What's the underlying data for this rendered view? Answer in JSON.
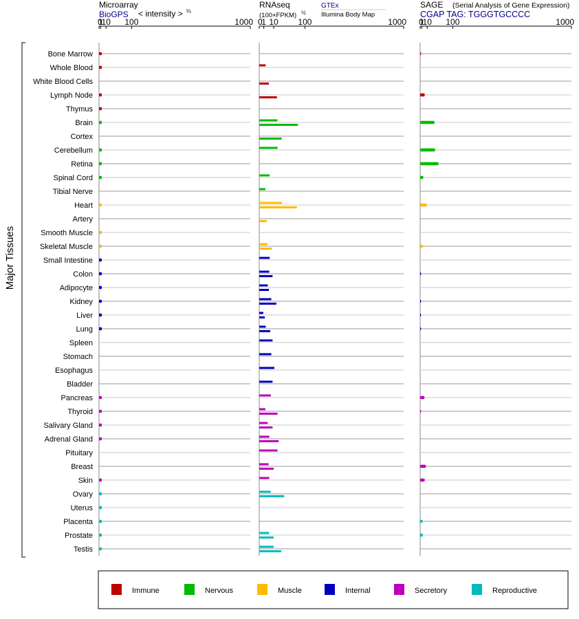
{
  "colors": {
    "immune": "#bb0000",
    "nervous": "#00bb00",
    "muscle": "#ffbb00",
    "internal": "#0000bb",
    "secretory": "#bb00bb",
    "reproductive": "#00bbbb",
    "accent_blue": "#000088"
  },
  "headers": {
    "microarray": {
      "title": "Microarray",
      "source": "BioGPS",
      "unit": "< intensity >",
      "unit_exp": "⅔"
    },
    "rnaseq": {
      "title": "RNAseq",
      "unit": "(100×FPKM)",
      "unit_exp": "½",
      "gtex": "GTEx",
      "ibm": "Illumina Body Map"
    },
    "sage": {
      "title": "SAGE",
      "subtitle": "(Serial Analysis of Gene Expression)",
      "tag": "CGAP TAG: TGGGTGCCCC"
    }
  },
  "y_group_label": "Major Tissues",
  "legend": [
    {
      "name": "Immune",
      "color": "#bb0000"
    },
    {
      "name": "Nervous",
      "color": "#00bb00"
    },
    {
      "name": "Muscle",
      "color": "#ffbb00"
    },
    {
      "name": "Internal",
      "color": "#0000bb"
    },
    {
      "name": "Secretory",
      "color": "#bb00bb"
    },
    {
      "name": "Reproductive",
      "color": "#00bbbb"
    }
  ],
  "chart_data": [
    {
      "type": "bar",
      "panel": "Microarray",
      "x_scale": "power 2/3",
      "xlim": [
        0,
        1000
      ],
      "ticks": [
        "0",
        "1",
        "10",
        "100",
        "1000"
      ],
      "tick_values": [
        0,
        1,
        10,
        100,
        1000
      ],
      "grid": true,
      "categories": [
        "Bone Marrow",
        "Whole Blood",
        "White Blood Cells",
        "Lymph Node",
        "Thymus",
        "Brain",
        "Cortex",
        "Cerebellum",
        "Retina",
        "Spinal Cord",
        "Tibial Nerve",
        "Heart",
        "Artery",
        "Smooth Muscle",
        "Skeletal Muscle",
        "Small Intestine",
        "Colon",
        "Adipocyte",
        "Kidney",
        "Liver",
        "Lung",
        "Spleen",
        "Stomach",
        "Esophagus",
        "Bladder",
        "Pancreas",
        "Thyroid",
        "Salivary Gland",
        "Adrenal Gland",
        "Pituitary",
        "Breast",
        "Skin",
        "Ovary",
        "Uterus",
        "Placenta",
        "Prostate",
        "Testis"
      ],
      "groups": [
        "immune",
        "immune",
        "immune",
        "immune",
        "immune",
        "nervous",
        "nervous",
        "nervous",
        "nervous",
        "nervous",
        "nervous",
        "muscle",
        "muscle",
        "muscle",
        "muscle",
        "internal",
        "internal",
        "internal",
        "internal",
        "internal",
        "internal",
        "internal",
        "internal",
        "internal",
        "internal",
        "secretory",
        "secretory",
        "secretory",
        "secretory",
        "secretory",
        "secretory",
        "secretory",
        "reproductive",
        "reproductive",
        "reproductive",
        "reproductive",
        "reproductive"
      ],
      "values": [
        2.5,
        2.5,
        null,
        2.5,
        2.5,
        2.5,
        null,
        2.5,
        2.5,
        2.5,
        null,
        2.3,
        null,
        2.5,
        2.5,
        2.5,
        2.5,
        2.5,
        2.5,
        2.5,
        2.5,
        null,
        null,
        null,
        null,
        2.5,
        2.5,
        2.5,
        2.5,
        null,
        null,
        2.5,
        2.5,
        2.5,
        2.5,
        2.5,
        2.5
      ]
    },
    {
      "type": "bar",
      "panel": "RNAseq",
      "x_scale": "power 1/2",
      "xlim": [
        0,
        1000
      ],
      "ticks": [
        "0",
        "1",
        "10",
        "100",
        "1000"
      ],
      "tick_values": [
        0,
        1,
        10,
        100,
        1000
      ],
      "grid": true,
      "series": [
        {
          "name": "GTEx",
          "values": [
            null,
            2.0,
            null,
            null,
            null,
            16,
            null,
            16,
            null,
            5.2,
            1.8,
            25,
            null,
            null,
            3.2,
            5.2,
            4.8,
            3.5,
            7,
            0.8,
            2.0,
            8.5,
            7,
            11,
            8.5,
            6.5,
            1.8,
            3.4,
            4.8,
            16,
            4.2,
            4.8,
            6.4,
            null,
            null,
            4.6,
            10
          ]
        },
        {
          "name": "Illumina Body Map",
          "values": [
            null,
            null,
            4.5,
            15,
            null,
            72,
            24,
            null,
            null,
            null,
            null,
            68,
            2.8,
            null,
            7.6,
            null,
            8.5,
            4.5,
            14,
            1.5,
            5.8,
            null,
            null,
            null,
            null,
            null,
            16,
            8.5,
            18,
            null,
            10,
            null,
            30,
            null,
            null,
            10,
            23
          ]
        }
      ]
    },
    {
      "type": "bar",
      "panel": "SAGE",
      "x_scale": "power 2/3",
      "xlim": [
        0,
        1000
      ],
      "ticks": [
        "0",
        "1",
        "10",
        "100",
        "1000"
      ],
      "tick_values": [
        0,
        1,
        10,
        100,
        1000
      ],
      "grid": true,
      "values": [
        0.03,
        null,
        null,
        5.2,
        null,
        29,
        null,
        31,
        42,
        3.0,
        null,
        9.0,
        null,
        null,
        2.4,
        null,
        0.03,
        null,
        0.03,
        0.03,
        0.03,
        null,
        null,
        null,
        null,
        4.8,
        0.03,
        null,
        null,
        null,
        7.3,
        5.2,
        null,
        null,
        1.9,
        2.3,
        null
      ]
    }
  ]
}
